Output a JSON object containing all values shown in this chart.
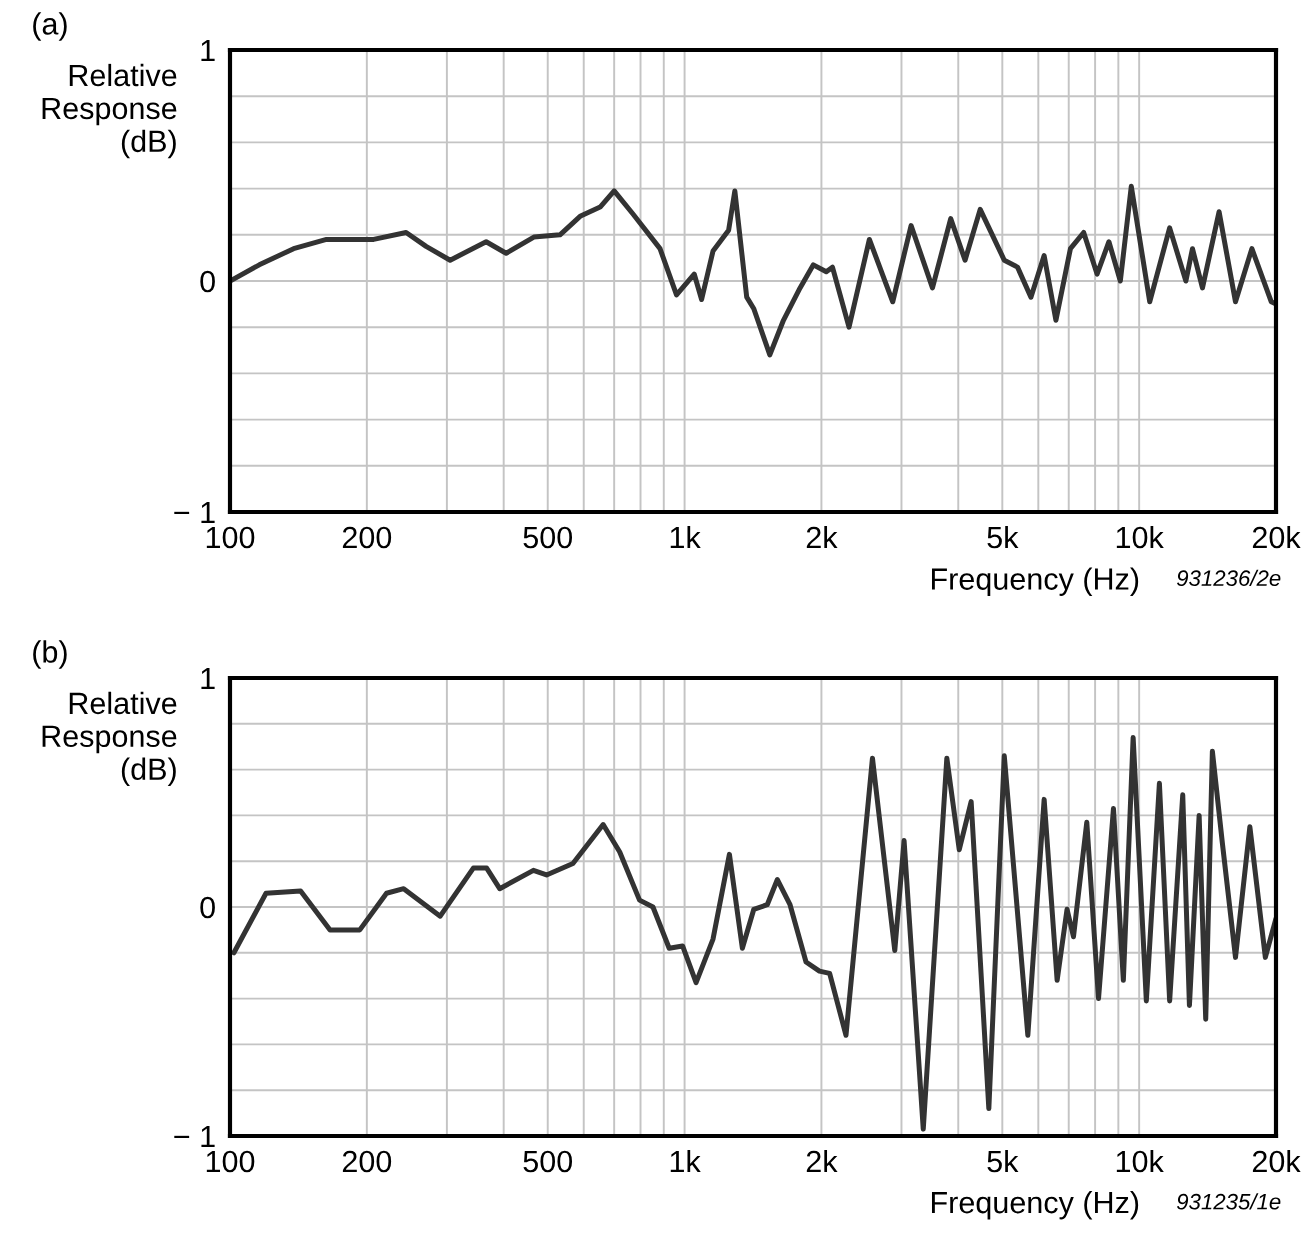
{
  "chart_data": [
    {
      "type": "line",
      "title": "(a)",
      "ylabel": "Relative\nResponse\n(dB)",
      "xlabel": "Frequency (Hz)",
      "annotations": [
        "931236/2e"
      ],
      "log": "x",
      "grid": true,
      "legend": false,
      "marker": "none",
      "line_style": "solid",
      "xlim": [
        100,
        20000
      ],
      "ylim": [
        -1,
        1
      ],
      "xticks": [
        {
          "value": 100,
          "label": "100"
        },
        {
          "value": 200,
          "label": "200"
        },
        {
          "value": 300,
          "label": null
        },
        {
          "value": 400,
          "label": null
        },
        {
          "value": 500,
          "label": "500"
        },
        {
          "value": 600,
          "label": null
        },
        {
          "value": 700,
          "label": null
        },
        {
          "value": 800,
          "label": null
        },
        {
          "value": 900,
          "label": null
        },
        {
          "value": 1000,
          "label": "1k"
        },
        {
          "value": 2000,
          "label": "2k"
        },
        {
          "value": 3000,
          "label": null
        },
        {
          "value": 4000,
          "label": null
        },
        {
          "value": 5000,
          "label": "5k"
        },
        {
          "value": 6000,
          "label": null
        },
        {
          "value": 7000,
          "label": null
        },
        {
          "value": 8000,
          "label": null
        },
        {
          "value": 9000,
          "label": null
        },
        {
          "value": 10000,
          "label": "10k"
        },
        {
          "value": 20000,
          "label": "20k"
        }
      ],
      "yticks": [
        {
          "value": -1,
          "label": "− 1"
        },
        {
          "value": -0.8,
          "label": null
        },
        {
          "value": -0.6,
          "label": null
        },
        {
          "value": -0.4,
          "label": null
        },
        {
          "value": -0.2,
          "label": null
        },
        0,
        {
          "value": 0.2,
          "label": null
        },
        {
          "value": 0.4,
          "label": null
        },
        {
          "value": 0.6,
          "label": null
        },
        {
          "value": 0.8,
          "label": null
        },
        1
      ],
      "series": [
        {
          "color": "#333333",
          "x": [
            100,
            116,
            138,
            163,
            207,
            244,
            270,
            305,
            366,
            405,
            466,
            532,
            589,
            652,
            700,
            770,
            883,
            960,
            1050,
            1090,
            1155,
            1250,
            1290,
            1370,
            1420,
            1540,
            1650,
            1795,
            1920,
            2050,
            2115,
            2300,
            2550,
            2870,
            3150,
            3510,
            3850,
            4140,
            4470,
            5050,
            5400,
            5780,
            6180,
            6560,
            7060,
            7550,
            8080,
            8580,
            9090,
            9610,
            10550,
            11670,
            12670,
            13100,
            13780,
            14990,
            16290,
            17700,
            19530,
            20000
          ],
          "values": [
            0,
            0.07,
            0.14,
            0.18,
            0.18,
            0.21,
            0.15,
            0.09,
            0.17,
            0.12,
            0.19,
            0.2,
            0.28,
            0.32,
            0.39,
            0.29,
            0.14,
            -0.06,
            0.03,
            -0.08,
            0.13,
            0.22,
            0.39,
            -0.07,
            -0.12,
            -0.32,
            -0.17,
            -0.03,
            0.07,
            0.04,
            0.06,
            -0.2,
            0.18,
            -0.09,
            0.24,
            -0.03,
            0.27,
            0.09,
            0.31,
            0.09,
            0.06,
            -0.07,
            0.11,
            -0.17,
            0.14,
            0.21,
            0.03,
            0.17,
            0,
            0.41,
            -0.09,
            0.23,
            0,
            0.14,
            -0.03,
            0.3,
            -0.09,
            0.14,
            -0.09,
            -0.1
          ]
        }
      ]
    },
    {
      "type": "line",
      "title": "(b)",
      "ylabel": "Relative\nResponse\n(dB)",
      "xlabel": "Frequency (Hz)",
      "annotations": [
        "931235/1e"
      ],
      "log": "x",
      "grid": true,
      "legend": false,
      "marker": "none",
      "line_style": "solid",
      "xlim": [
        100,
        20000
      ],
      "ylim": [
        -1,
        1
      ],
      "xticks": [
        {
          "value": 100,
          "label": "100"
        },
        {
          "value": 200,
          "label": "200"
        },
        {
          "value": 300,
          "label": null
        },
        {
          "value": 400,
          "label": null
        },
        {
          "value": 500,
          "label": "500"
        },
        {
          "value": 600,
          "label": null
        },
        {
          "value": 700,
          "label": null
        },
        {
          "value": 800,
          "label": null
        },
        {
          "value": 900,
          "label": null
        },
        {
          "value": 1000,
          "label": "1k"
        },
        {
          "value": 2000,
          "label": "2k"
        },
        {
          "value": 3000,
          "label": null
        },
        {
          "value": 4000,
          "label": null
        },
        {
          "value": 5000,
          "label": "5k"
        },
        {
          "value": 6000,
          "label": null
        },
        {
          "value": 7000,
          "label": null
        },
        {
          "value": 8000,
          "label": null
        },
        {
          "value": 9000,
          "label": null
        },
        {
          "value": 10000,
          "label": "10k"
        },
        {
          "value": 20000,
          "label": "20k"
        }
      ],
      "yticks": [
        {
          "value": -1,
          "label": "− 1"
        },
        {
          "value": -0.8,
          "label": null
        },
        {
          "value": -0.6,
          "label": null
        },
        {
          "value": -0.4,
          "label": null
        },
        {
          "value": -0.2,
          "label": null
        },
        0,
        {
          "value": 0.2,
          "label": null
        },
        {
          "value": 0.4,
          "label": null
        },
        {
          "value": 0.6,
          "label": null
        },
        {
          "value": 0.8,
          "label": null
        },
        1
      ],
      "series": [
        {
          "color": "#333333",
          "x": [
            102,
            120,
            143,
            166,
            193,
            221,
            241,
            290,
            343,
            367,
            392,
            465,
            497,
            568,
            662,
            720,
            796,
            852,
            925,
            990,
            1060,
            1155,
            1255,
            1340,
            1420,
            1520,
            1600,
            1706,
            1850,
            1980,
            2085,
            2265,
            2590,
            2900,
            3040,
            3350,
            3775,
            4020,
            4270,
            4670,
            5050,
            5690,
            6180,
            6600,
            6940,
            7170,
            7670,
            8140,
            8780,
            9230,
            9700,
            10370,
            11080,
            11670,
            12470,
            12900,
            13550,
            14010,
            14490,
            15240,
            16290,
            17520,
            18950,
            20000
          ],
          "values": [
            -0.2,
            0.06,
            0.07,
            -0.1,
            -0.1,
            0.06,
            0.08,
            -0.04,
            0.17,
            0.17,
            0.08,
            0.16,
            0.14,
            0.19,
            0.36,
            0.24,
            0.03,
            0,
            -0.18,
            -0.17,
            -0.33,
            -0.14,
            0.23,
            -0.18,
            -0.01,
            0.01,
            0.12,
            0.01,
            -0.24,
            -0.28,
            -0.29,
            -0.56,
            0.65,
            -0.19,
            0.29,
            -0.97,
            0.65,
            0.25,
            0.46,
            -0.88,
            0.66,
            -0.56,
            0.47,
            -0.32,
            -0.01,
            -0.13,
            0.37,
            -0.4,
            0.43,
            -0.32,
            0.74,
            -0.41,
            0.54,
            -0.41,
            0.49,
            -0.43,
            0.4,
            -0.49,
            0.68,
            0.28,
            -0.22,
            0.35,
            -0.22,
            -0.05
          ]
        }
      ]
    }
  ]
}
